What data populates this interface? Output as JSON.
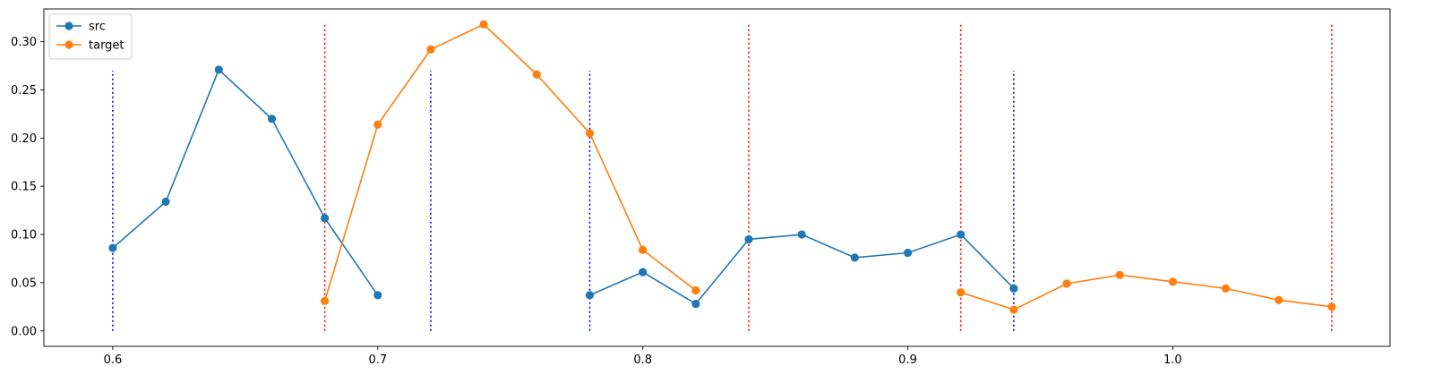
{
  "chart_data": {
    "type": "line",
    "title": "",
    "xlabel": "",
    "ylabel": "",
    "xlim": [
      0.574,
      1.082
    ],
    "ylim": [
      -0.016,
      0.334
    ],
    "xticks": [
      0.6,
      0.7,
      0.8,
      0.9,
      1.0
    ],
    "xtick_labels": [
      "0.6",
      "0.7",
      "0.8",
      "0.9",
      "1.0"
    ],
    "yticks": [
      0.0,
      0.05,
      0.1,
      0.15,
      0.2,
      0.25,
      0.3
    ],
    "ytick_labels": [
      "0.00",
      "0.05",
      "0.10",
      "0.15",
      "0.20",
      "0.25",
      "0.30"
    ],
    "grid": false,
    "legend_position": "top-left",
    "series": [
      {
        "name": "src",
        "color": "#1f77b4",
        "segments": [
          {
            "x": [
              0.6,
              0.62,
              0.64,
              0.66,
              0.68,
              0.7
            ],
            "y": [
              0.086,
              0.134,
              0.271,
              0.22,
              0.117,
              0.037
            ]
          },
          {
            "x": [
              0.78,
              0.8,
              0.82,
              0.84,
              0.86,
              0.88,
              0.9,
              0.92,
              0.94
            ],
            "y": [
              0.037,
              0.061,
              0.028,
              0.095,
              0.1,
              0.076,
              0.081,
              0.1,
              0.044
            ]
          }
        ]
      },
      {
        "name": "target",
        "color": "#ff7f0e",
        "segments": [
          {
            "x": [
              0.68,
              0.7,
              0.72,
              0.74,
              0.76,
              0.78,
              0.8,
              0.82
            ],
            "y": [
              0.031,
              0.214,
              0.292,
              0.318,
              0.266,
              0.205,
              0.084,
              0.042
            ]
          },
          {
            "x": [
              0.92,
              0.94,
              0.96,
              0.98,
              1.0,
              1.02,
              1.04,
              1.06
            ],
            "y": [
              0.04,
              0.022,
              0.049,
              0.058,
              0.051,
              0.044,
              0.032,
              0.025
            ]
          }
        ]
      }
    ],
    "vlines": [
      {
        "color": "#0000ff",
        "ymin": 0.0,
        "ymax": 0.27,
        "x": [
          0.6,
          0.72,
          0.78,
          0.94
        ]
      },
      {
        "color": "#ff0000",
        "ymin": 0.0,
        "ymax": 0.32,
        "x": [
          0.68,
          0.84,
          0.92,
          1.06
        ]
      }
    ]
  }
}
